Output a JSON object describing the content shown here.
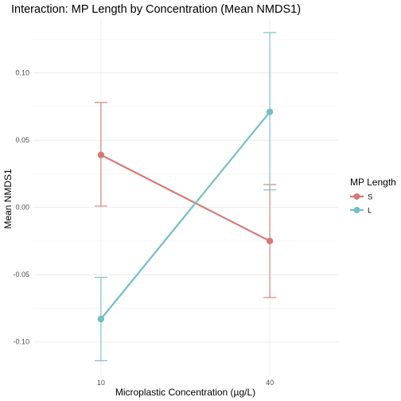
{
  "chart_data": {
    "type": "line",
    "title": "Interaction: MP Length by Concentration (Mean NMDS1)",
    "xlabel": "Microplastic Concentration (µg/L)",
    "ylabel": "Mean NMDS1",
    "categories": [
      "10",
      "40"
    ],
    "y_ticks": [
      -0.1,
      -0.05,
      0.0,
      0.05,
      0.1
    ],
    "y_tick_labels": [
      "-0.10",
      "-0.05",
      "0.00",
      "0.05",
      "0.10"
    ],
    "ylim": [
      -0.125,
      0.14
    ],
    "grid": true,
    "legend": {
      "title": "MP Length",
      "position": "right"
    },
    "series": [
      {
        "name": "S",
        "color": "#d47a72",
        "values": [
          0.039,
          -0.025
        ],
        "lower": [
          0.001,
          -0.067
        ],
        "upper": [
          0.078,
          0.017
        ]
      },
      {
        "name": "L",
        "color": "#74bec6",
        "values": [
          -0.083,
          0.071
        ],
        "lower": [
          -0.114,
          0.013
        ],
        "upper": [
          -0.052,
          0.13
        ]
      }
    ]
  }
}
